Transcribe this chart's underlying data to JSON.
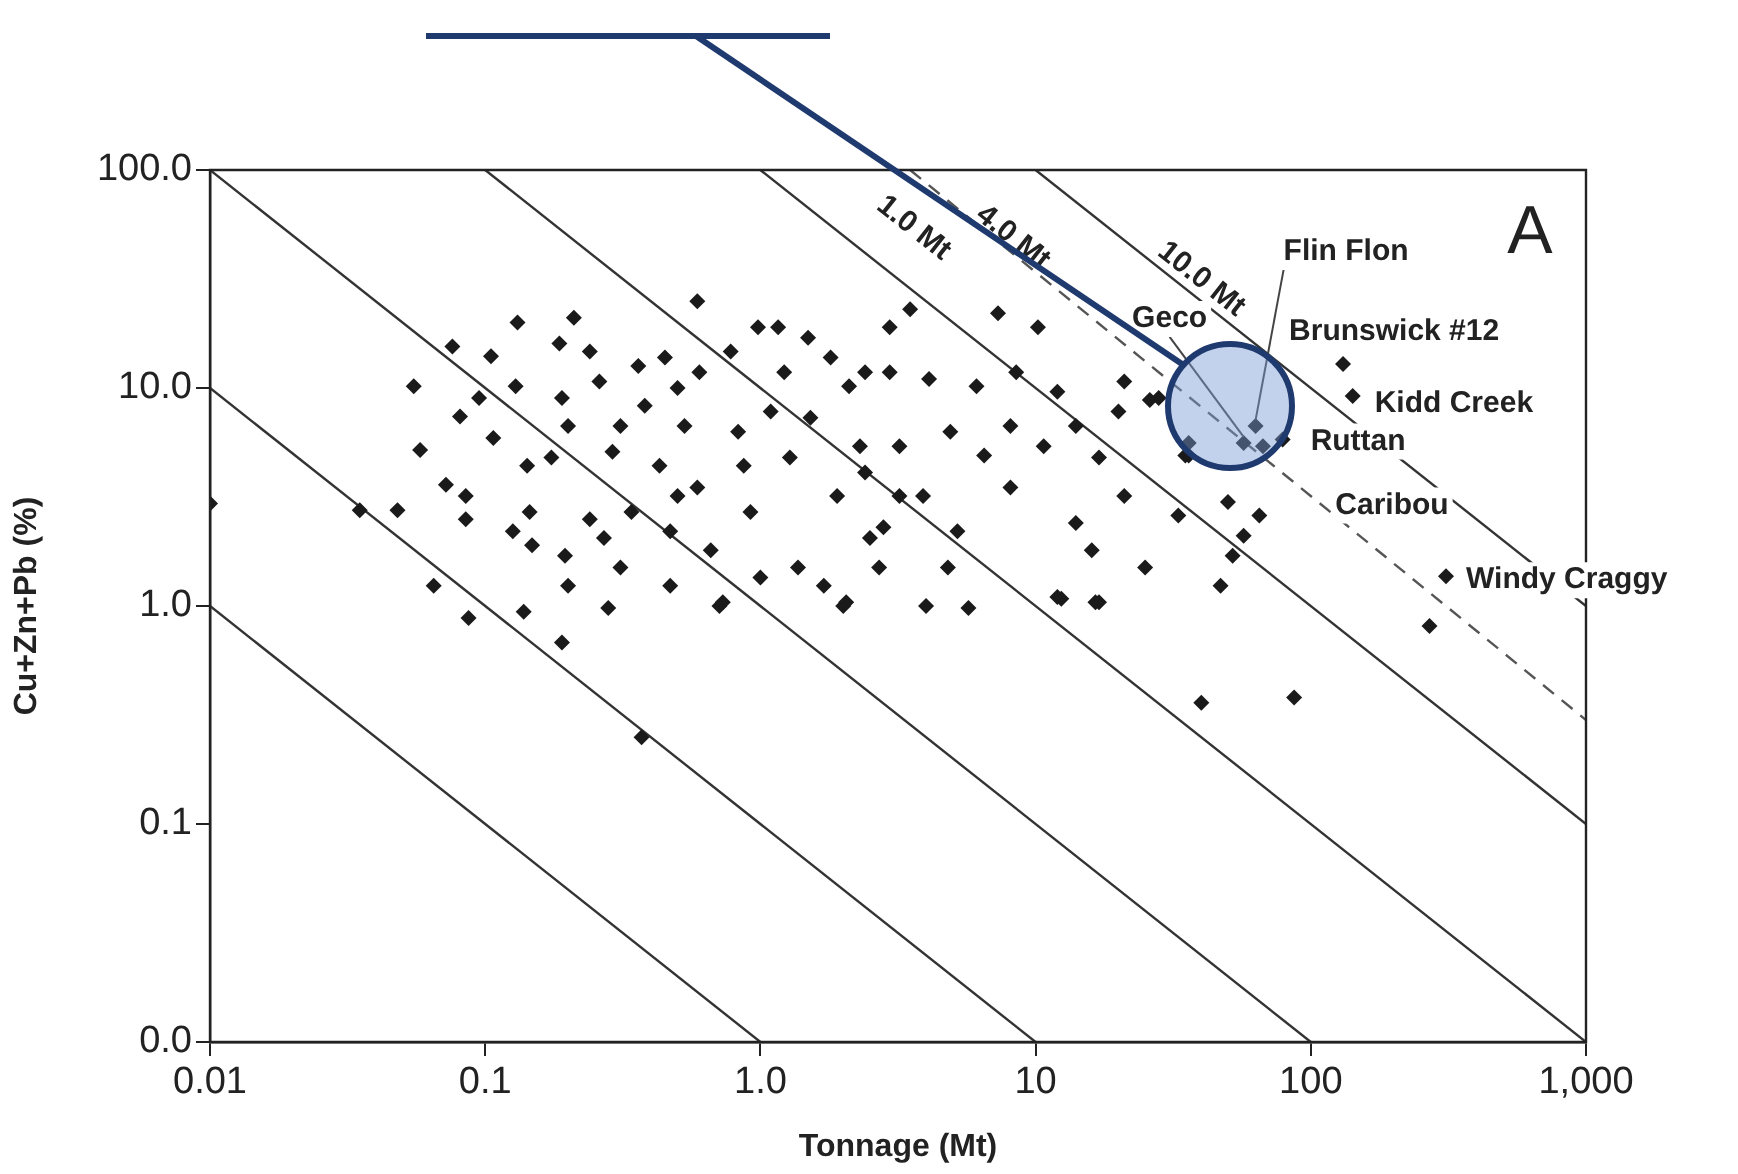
{
  "chart_data": {
    "type": "scatter",
    "xlabel": "Tonnage (Mt)",
    "ylabel": "Cu+Zn+Pb (%)",
    "log": "xy",
    "grid": false,
    "legend": false,
    "xlim": [
      0.01,
      1000
    ],
    "ylim": [
      0.01,
      100
    ],
    "xticks": [
      0.01,
      0.1,
      {
        "value": 1,
        "label": "1.0"
      },
      10,
      100,
      {
        "value": 1000,
        "label": "1,000"
      }
    ],
    "yticks": [
      {
        "value": 0.01,
        "label": "0.0"
      },
      0.1,
      {
        "value": 1,
        "label": "1.0"
      },
      {
        "value": 10,
        "label": "10.0"
      },
      {
        "value": 100,
        "label": "100.0"
      }
    ],
    "series": [
      {
        "marker": "diamond",
        "color": "#1a1a1a",
        "x": [
          0.01,
          0.035,
          0.048,
          0.055,
          0.058,
          0.065,
          0.072,
          0.076,
          0.081,
          0.085,
          0.085,
          0.087,
          0.095,
          0.105,
          0.107,
          0.126,
          0.131,
          0.129,
          0.138,
          0.142,
          0.145,
          0.148,
          0.174,
          0.186,
          0.19,
          0.195,
          0.19,
          0.2,
          0.21,
          0.2,
          0.24,
          0.24,
          0.26,
          0.27,
          0.28,
          0.29,
          0.31,
          0.31,
          0.34,
          0.36,
          0.38,
          0.43,
          0.45,
          0.47,
          0.47,
          0.5,
          0.5,
          0.53,
          0.59,
          0.6,
          0.59,
          0.66,
          0.71,
          0.78,
          0.83,
          0.87,
          0.92,
          0.98,
          1.0,
          1.09,
          1.16,
          1.22,
          1.28,
          1.37,
          1.49,
          1.52,
          1.7,
          1.8,
          1.9,
          2.0,
          2.1,
          2.3,
          2.5,
          2.7,
          2.95,
          2.95,
          3.2,
          3.5,
          7.3,
          10.2,
          2.4,
          4.1,
          6.1,
          8.5,
          12,
          21,
          28,
          20,
          14,
          8.1,
          4.9,
          3.2,
          2.4,
          6.5,
          10.7,
          17,
          21,
          35,
          8.1,
          3.9,
          2.8,
          5.2,
          14,
          33,
          50,
          65,
          57,
          52,
          16,
          4.8,
          47,
          25,
          12,
          17,
          270,
          36,
          57,
          63,
          67,
          79,
          26,
          36,
          142,
          131,
          310,
          0.37,
          40,
          87,
          12.4,
          16.5,
          5.7,
          4.0,
          2.05,
          0.73
        ],
        "values": [
          2.95,
          2.75,
          2.75,
          10.2,
          5.2,
          1.24,
          3.6,
          15.5,
          7.4,
          3.2,
          2.5,
          0.88,
          9.0,
          14,
          5.9,
          2.2,
          20,
          10.2,
          0.94,
          4.4,
          2.7,
          1.9,
          4.8,
          16,
          9,
          1.7,
          0.68,
          6.7,
          21,
          1.24,
          2.5,
          14.7,
          10.7,
          2.05,
          0.98,
          5.1,
          6.7,
          1.5,
          2.7,
          12.6,
          8.3,
          4.4,
          13.8,
          1.24,
          2.2,
          10,
          3.2,
          6.7,
          25,
          11.8,
          3.5,
          1.8,
          1.0,
          14.7,
          6.3,
          4.4,
          2.7,
          19,
          1.35,
          7.8,
          19,
          11.8,
          4.8,
          1.5,
          17,
          7.3,
          1.24,
          13.8,
          3.2,
          1.0,
          10.2,
          5.4,
          2.05,
          1.5,
          19,
          11.8,
          3.2,
          23,
          22,
          19,
          11.8,
          11,
          10.2,
          11.8,
          9.6,
          10.7,
          9,
          7.8,
          6.7,
          6.7,
          6.3,
          5.4,
          4.1,
          4.9,
          5.4,
          4.8,
          3.2,
          4.9,
          3.5,
          3.2,
          2.3,
          2.2,
          2.4,
          2.6,
          3.0,
          2.6,
          2.1,
          1.7,
          1.8,
          1.5,
          1.24,
          1.5,
          1.1,
          1.04,
          0.81,
          5.6,
          5.6,
          6.7,
          5.4,
          5.8,
          8.8,
          4.9,
          9.2,
          12.9,
          1.37,
          0.25,
          0.36,
          0.38,
          1.08,
          1.04,
          0.98,
          1.0,
          1.04,
          1.04
        ]
      },
      {
        "type": "line",
        "color": "#333333",
        "x": [
          0.01,
          1
        ],
        "values": [
          1,
          0.01
        ]
      },
      {
        "type": "line",
        "color": "#333333",
        "x": [
          0.01,
          10
        ],
        "values": [
          10,
          0.01
        ]
      },
      {
        "type": "line",
        "color": "#333333",
        "x": [
          0.01,
          100
        ],
        "values": [
          100,
          0.01
        ]
      },
      {
        "type": "line",
        "color": "#333333",
        "x": [
          0.1,
          1000
        ],
        "values": [
          100,
          0.01
        ]
      },
      {
        "type": "line",
        "color": "#333333",
        "x": [
          1,
          1000
        ],
        "values": [
          100,
          0.1
        ]
      },
      {
        "type": "line",
        "color": "#555555",
        "line_style": "dashed",
        "x": [
          3.5,
          1000
        ],
        "values": [
          100,
          0.3
        ]
      },
      {
        "type": "line",
        "color": "#333333",
        "x": [
          10,
          1000
        ],
        "values": [
          100,
          1
        ]
      }
    ],
    "annotations": [
      "A",
      {
        "text": "1.0 Mt",
        "x": 3,
        "y": 33.3
      },
      {
        "text": "4.0 Mt",
        "x": 9,
        "y": 38
      },
      {
        "text": "10.0 Mt",
        "x": 40,
        "y": 25
      },
      {
        "text": "Flin Flon",
        "x": 63,
        "y": 6.7
      },
      {
        "text": "Geco",
        "x": 57,
        "y": 5.6
      },
      {
        "text": "Brunswick #12",
        "x": 131,
        "y": 12.9
      },
      {
        "text": "Kidd Creek",
        "x": 142,
        "y": 9.2
      },
      {
        "text": "Ruttan",
        "x": 79,
        "y": 5.8
      },
      {
        "text": "Caribou",
        "x": 65,
        "y": 2.6
      },
      {
        "text": "Windy Craggy",
        "x": 310,
        "y": 1.37
      }
    ]
  }
}
